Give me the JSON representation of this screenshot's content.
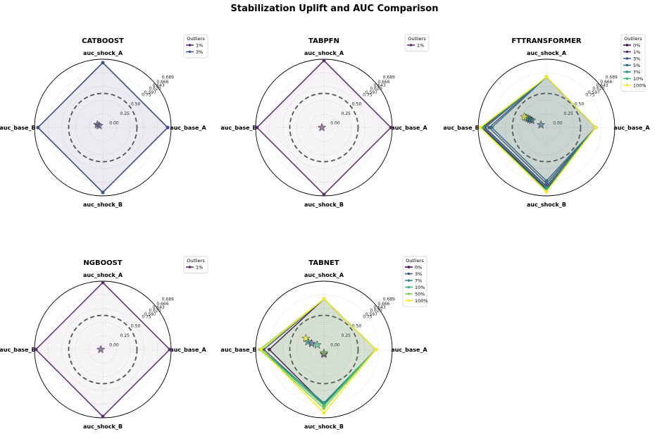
{
  "figure_title": "Stabilization Uplift and AUC Comparison",
  "legend_title": "Outliers",
  "colors": {
    "0%": "#440154",
    "1%": "#5b2a6e",
    "3%": "#3b528b",
    "5%": "#31688e",
    "7%": "#21918c",
    "10%": "#35b779",
    "50%": "#7ad151",
    "100%": "#fde725"
  },
  "chart_data": [
    {
      "type": "radar",
      "title": "CATBOOST",
      "axes": [
        "auc_shock_A",
        "auc_base_A",
        "auc_shock_B",
        "auc_base_B"
      ],
      "radial_tick_labels": [
        "0.00",
        "0.25",
        "0.50",
        "0.75",
        "0.597",
        "0.620",
        "0.643",
        "0.666",
        "0.689"
      ],
      "reference_circle": 0.5,
      "series": [
        {
          "name": "1%",
          "polygon": [
            0.95,
            0.95,
            0.95,
            0.95
          ],
          "star": [
            0.09,
            0.48
          ]
        },
        {
          "name": "3%",
          "polygon": [
            0.95,
            0.95,
            0.95,
            0.95
          ],
          "star": [
            0.06,
            0.45
          ]
        }
      ]
    },
    {
      "type": "radar",
      "title": "TABPFN",
      "axes": [
        "auc_shock_A",
        "auc_base_A",
        "auc_shock_B",
        "auc_base_B"
      ],
      "radial_tick_labels": [
        "0.00",
        "0.25",
        "0.50",
        "0.75",
        "0.597",
        "0.620",
        "0.643",
        "0.666",
        "0.689"
      ],
      "reference_circle": 0.5,
      "series": [
        {
          "name": "1%",
          "polygon": [
            0.98,
            0.98,
            0.98,
            0.98
          ],
          "star": [
            0.03,
            0.0
          ]
        }
      ]
    },
    {
      "type": "radar",
      "title": "FTTRANSFORMER",
      "axes": [
        "auc_shock_A",
        "auc_base_A",
        "auc_shock_B",
        "auc_base_B"
      ],
      "radial_tick_labels": [
        "0.00",
        "0.25",
        "0.50",
        "0.75",
        "0.597",
        "0.620",
        "0.643",
        "0.666",
        "0.689"
      ],
      "reference_circle": 0.5,
      "series": [
        {
          "name": "0%",
          "polygon": [
            0.74,
            0.72,
            0.9,
            0.94
          ],
          "star": [
            0.3,
            0.45
          ]
        },
        {
          "name": "1%",
          "polygon": [
            0.74,
            0.72,
            0.86,
            0.9
          ],
          "star": [
            0.27,
            0.45
          ]
        },
        {
          "name": "3%",
          "polygon": [
            0.74,
            0.72,
            0.82,
            0.84
          ],
          "star": [
            0.24,
            0.45
          ]
        },
        {
          "name": "5%",
          "polygon": [
            0.74,
            0.72,
            0.78,
            0.8
          ],
          "star": [
            0.09,
            0.45
          ]
        },
        {
          "name": "7%",
          "polygon": [
            0.74,
            0.72,
            0.88,
            0.92
          ],
          "star": [
            0.27,
            0.45
          ]
        },
        {
          "name": "10%",
          "polygon": [
            0.74,
            0.72,
            0.92,
            0.96
          ],
          "star": [
            0.33,
            0.45
          ]
        },
        {
          "name": "100%",
          "polygon": [
            0.74,
            0.72,
            0.94,
            0.97
          ],
          "star": [
            0.36,
            0.45
          ]
        }
      ]
    },
    {
      "type": "radar",
      "title": "NGBOOST",
      "axes": [
        "auc_shock_A",
        "auc_base_A",
        "auc_shock_B",
        "auc_base_B"
      ],
      "radial_tick_labels": [
        "0.00",
        "0.25",
        "0.50",
        "0.75",
        "0.597",
        "0.620",
        "0.643",
        "0.666",
        "0.689"
      ],
      "reference_circle": 0.5,
      "series": [
        {
          "name": "1%",
          "polygon": [
            0.98,
            0.98,
            0.98,
            0.98
          ],
          "star": [
            0.03,
            0.0
          ]
        }
      ]
    },
    {
      "type": "radar",
      "title": "TABNET",
      "axes": [
        "auc_shock_A",
        "auc_base_A",
        "auc_shock_B",
        "auc_base_B"
      ],
      "radial_tick_labels": [
        "0.00",
        "0.25",
        "0.50",
        "0.75",
        "0.597",
        "0.620",
        "0.643",
        "0.666",
        "0.689"
      ],
      "reference_circle": 0.5,
      "series": [
        {
          "name": "0%",
          "polygon": [
            0.74,
            0.76,
            0.8,
            0.8
          ],
          "star": [
            0.07,
            -1.57
          ]
        },
        {
          "name": "3%",
          "polygon": [
            0.74,
            0.76,
            0.8,
            0.88
          ],
          "star": [
            0.2,
            0.45
          ]
        },
        {
          "name": "7%",
          "polygon": [
            0.74,
            0.76,
            0.78,
            0.92
          ],
          "star": [
            0.26,
            0.45
          ]
        },
        {
          "name": "10%",
          "polygon": [
            0.74,
            0.76,
            0.82,
            0.92
          ],
          "star": [
            0.12,
            0.6
          ]
        },
        {
          "name": "50%",
          "polygon": [
            0.74,
            0.76,
            0.86,
            0.94
          ],
          "star": [
            0.05,
            -1.57
          ]
        },
        {
          "name": "100%",
          "polygon": [
            0.74,
            0.76,
            0.93,
            0.92
          ],
          "star": [
            0.31,
            0.55
          ]
        }
      ]
    }
  ]
}
